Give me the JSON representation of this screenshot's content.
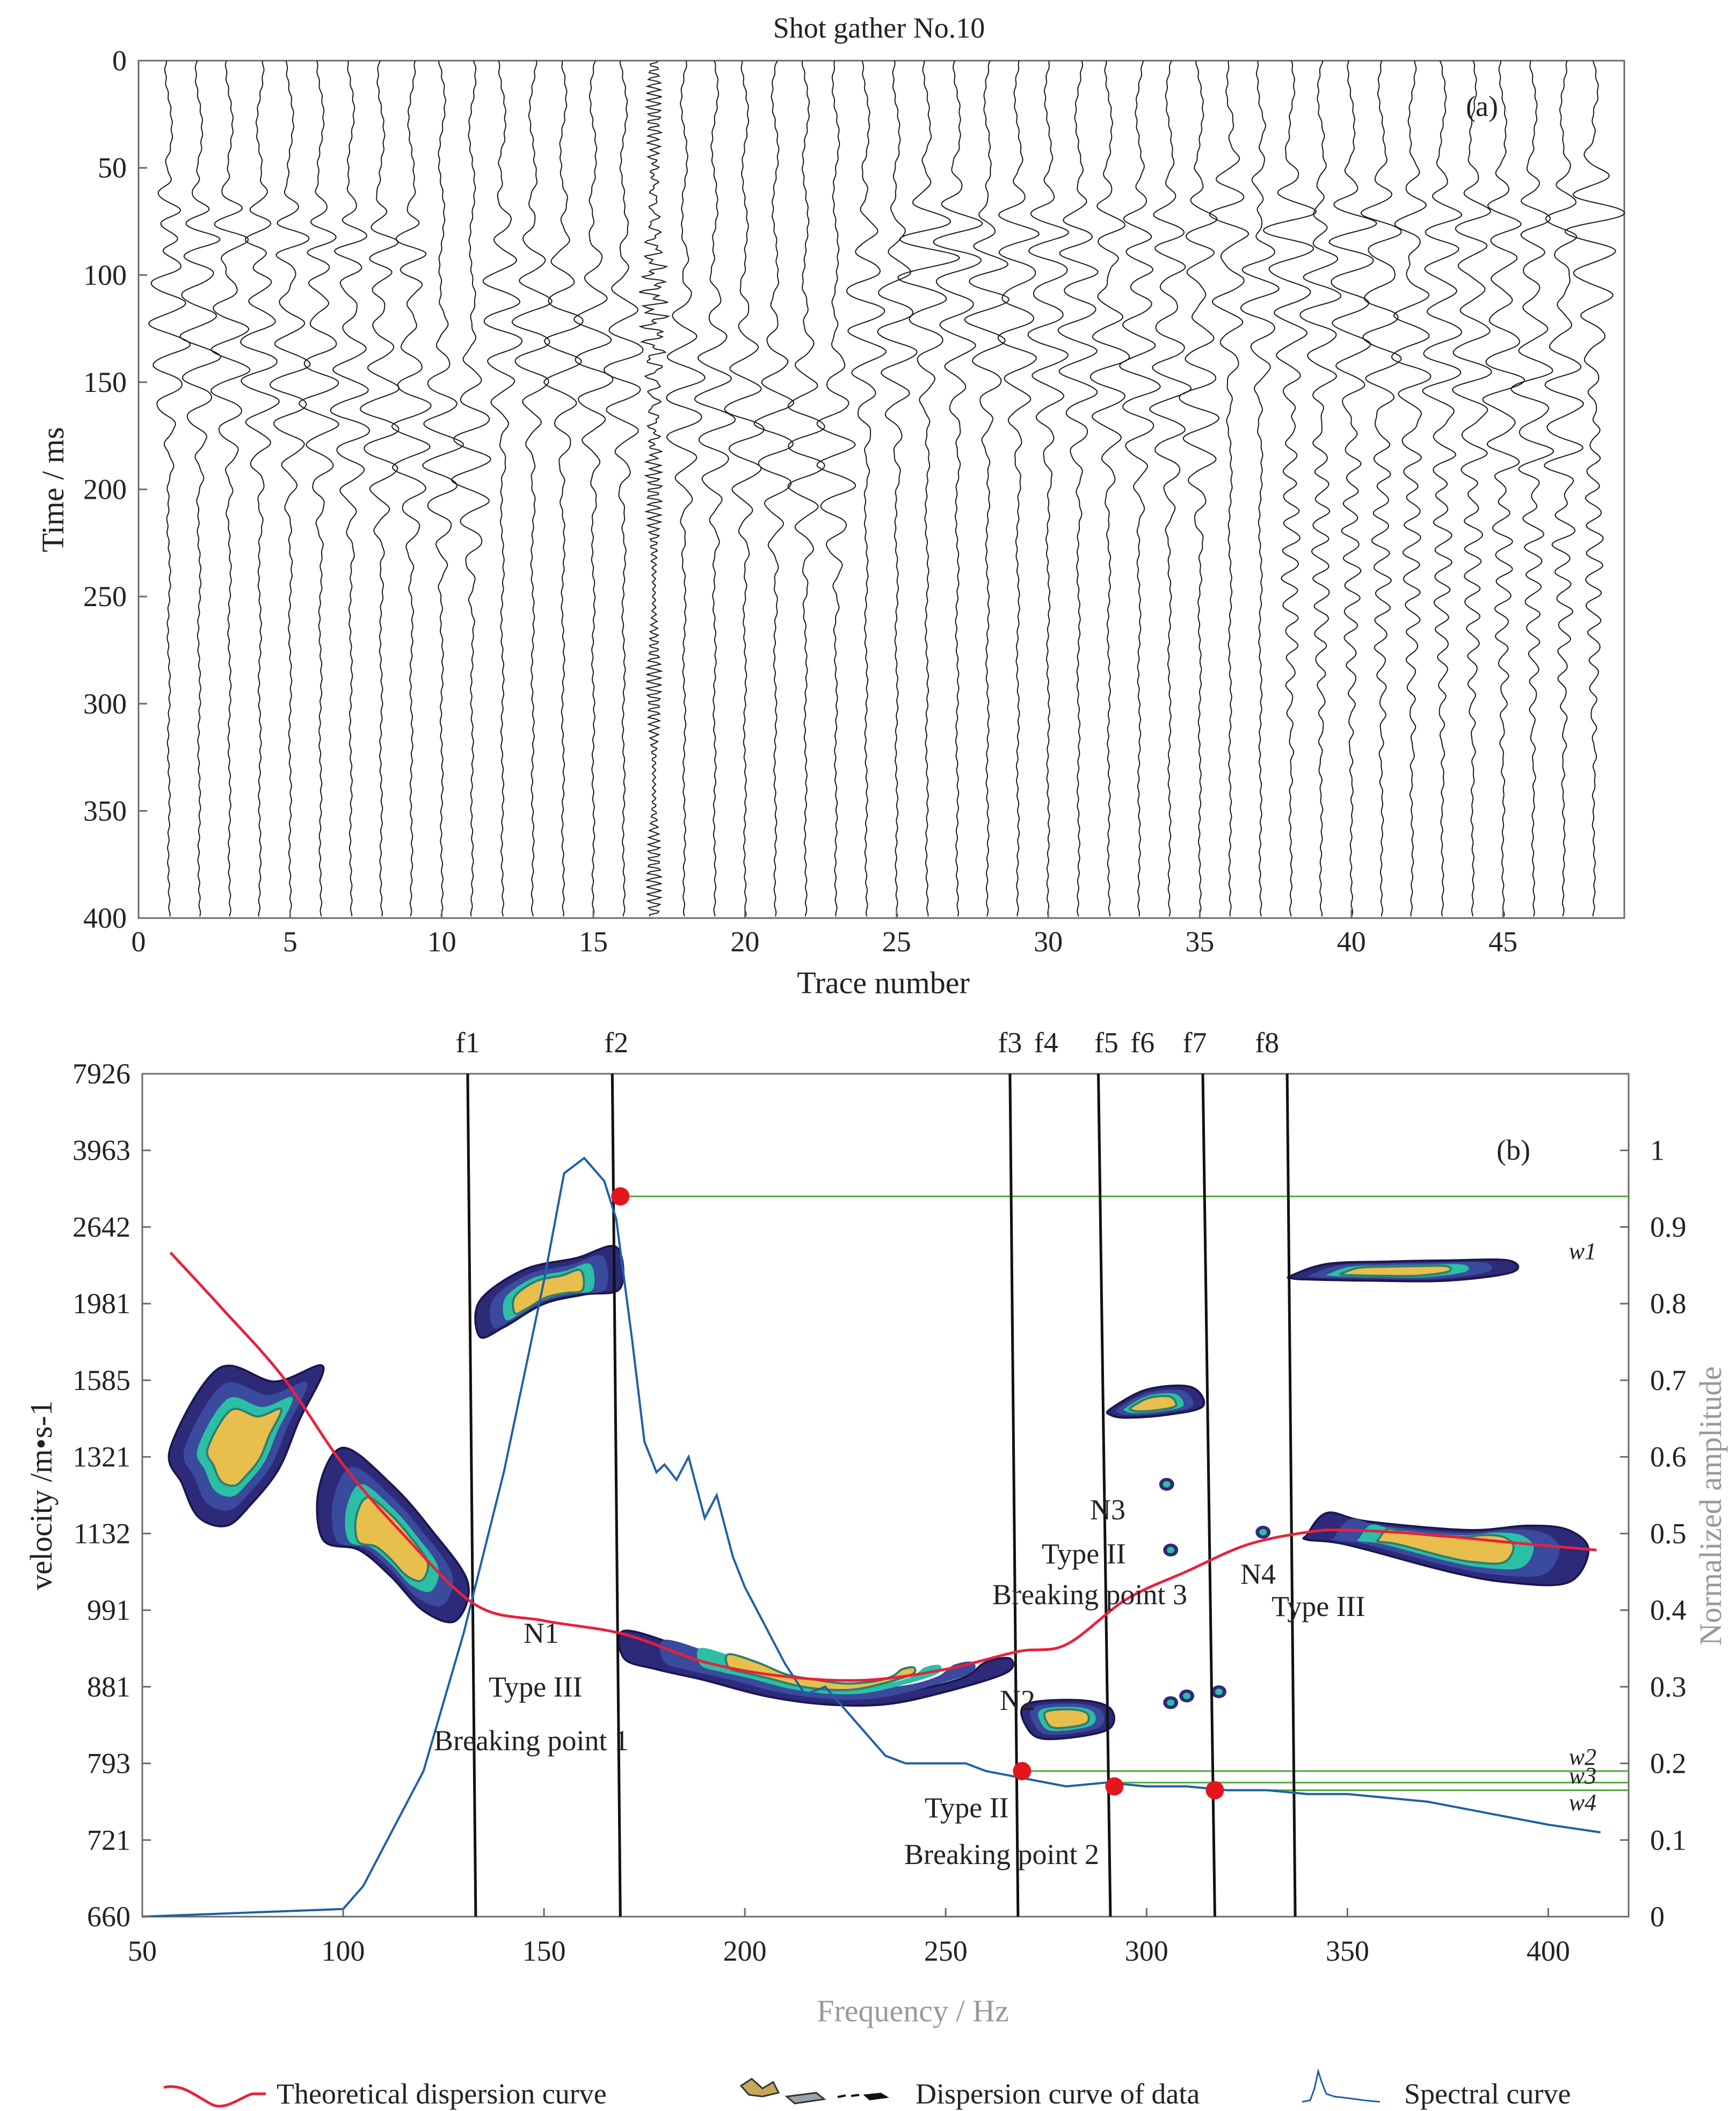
{
  "chart_data": [
    {
      "id": "a",
      "type": "seismic-wiggle",
      "title": "Shot gather No.10",
      "panel_label": "(a)",
      "xlabel": "Trace number",
      "ylabel": "Time / ms",
      "xlim": [
        0,
        49
      ],
      "ylim": [
        0,
        400
      ],
      "xticks": [
        "0",
        "5",
        "10",
        "15",
        "20",
        "25",
        "30",
        "35",
        "40",
        "45"
      ],
      "yticks": [
        "0",
        "50",
        "100",
        "150",
        "200",
        "250",
        "300",
        "350",
        "400"
      ],
      "trace_count": 48,
      "events_ms": [
        {
          "name": "early arrival, traces 1-8",
          "t": 75
        },
        {
          "name": "main surface-wave packet",
          "t": 130
        },
        {
          "name": "late arrival, traces 26-48",
          "t": 85
        }
      ],
      "noisy_trace": 17
    },
    {
      "id": "b",
      "type": "line",
      "panel_label": "(b)",
      "xlabel": "Frequency / Hz",
      "ylabel": "velocity /m•s-1",
      "y2label": "Normalized amplitude",
      "xlim": [
        50,
        420
      ],
      "xticks": [
        "50",
        "100",
        "150",
        "200",
        "250",
        "300",
        "350",
        "400"
      ],
      "yticks": [
        "660",
        "721",
        "793",
        "881",
        "991",
        "1132",
        "1321",
        "1585",
        "1981",
        "2642",
        "3963",
        "7926"
      ],
      "y2lim": [
        0,
        1.1
      ],
      "y2ticks": [
        "0",
        "0.1",
        "0.2",
        "0.3",
        "0.4",
        "0.5",
        "0.6",
        "0.7",
        "0.8",
        "0.9",
        "1"
      ],
      "frequency_lines": [
        {
          "label": "f1",
          "f": 133
        },
        {
          "label": "f2",
          "f": 169
        },
        {
          "label": "f3",
          "f": 268
        },
        {
          "label": "f4",
          "f": 268
        },
        {
          "label": "f5",
          "f": 291
        },
        {
          "label": "f6",
          "f": 291
        },
        {
          "label": "f7",
          "f": 317
        },
        {
          "label": "f8",
          "f": 337
        }
      ],
      "f_label_x": [
        131,
        168,
        266,
        275,
        290,
        299,
        312,
        330
      ],
      "series": [
        {
          "name": "Theoretical dispersion curve",
          "color": "#e8213a",
          "x": [
            57,
            70,
            85,
            100,
            115,
            133,
            150,
            170,
            190,
            210,
            230,
            250,
            268,
            280,
            295,
            310,
            325,
            340,
            350,
            370,
            390,
            412
          ],
          "velocity": [
            2400,
            1950,
            1600,
            1300,
            1130,
            1000,
            975,
            955,
            915,
            895,
            890,
            905,
            930,
            940,
            1010,
            1060,
            1110,
            1135,
            1140,
            1130,
            1115,
            1100
          ]
        },
        {
          "name": "Spectral curve",
          "color": "#1f5fa8",
          "x": [
            50,
            100,
            105,
            110,
            120,
            130,
            140,
            150,
            155,
            160,
            165,
            168,
            172,
            175,
            178,
            180,
            183,
            186,
            190,
            193,
            197,
            200,
            205,
            210,
            215,
            220,
            225,
            230,
            235,
            240,
            245,
            250,
            255,
            260,
            270,
            280,
            290,
            300,
            310,
            320,
            330,
            340,
            350,
            360,
            370,
            380,
            390,
            400,
            413
          ],
          "amplitude": [
            0,
            0.01,
            0.04,
            0.09,
            0.19,
            0.37,
            0.58,
            0.83,
            0.97,
            0.99,
            0.96,
            0.91,
            0.75,
            0.62,
            0.58,
            0.59,
            0.57,
            0.6,
            0.52,
            0.55,
            0.47,
            0.43,
            0.38,
            0.33,
            0.29,
            0.3,
            0.27,
            0.24,
            0.21,
            0.2,
            0.2,
            0.2,
            0.2,
            0.19,
            0.18,
            0.17,
            0.175,
            0.17,
            0.17,
            0.165,
            0.165,
            0.16,
            0.16,
            0.155,
            0.15,
            0.14,
            0.13,
            0.12,
            0.11
          ]
        }
      ],
      "dispersion_blobs": [
        {
          "name": "blob-low-1",
          "f": [
            57,
            69,
            83,
            95,
            89,
            84,
            77,
            71,
            64,
            60
          ],
          "v": [
            1350,
            1640,
            1580,
            1650,
            1440,
            1290,
            1200,
            1150,
            1170,
            1250
          ]
        },
        {
          "name": "blob-low-2",
          "f": [
            94,
            100,
            112,
            122,
            131,
            128,
            120,
            112,
            104,
            95
          ],
          "v": [
            1240,
            1350,
            1250,
            1140,
            1040,
            975,
            990,
            1050,
            1100,
            1120
          ]
        },
        {
          "name": "blob-f1f2",
          "f": [
            134,
            145,
            158,
            168,
            169,
            160,
            150,
            140,
            134
          ],
          "v": [
            2000,
            2250,
            2350,
            2450,
            2100,
            2050,
            1980,
            1850,
            1800
          ]
        },
        {
          "name": "blob-N1",
          "f": [
            170,
            185,
            200,
            215,
            230,
            245,
            255,
            260,
            266,
            265,
            250,
            235,
            220,
            205,
            190,
            178,
            170
          ],
          "v": [
            960,
            935,
            900,
            885,
            875,
            880,
            895,
            915,
            920,
            900,
            875,
            860,
            860,
            870,
            890,
            905,
            920
          ]
        },
        {
          "name": "blob-N2",
          "f": [
            270,
            283,
            291,
            290,
            275,
            270
          ],
          "v": [
            860,
            865,
            855,
            830,
            820,
            835
          ]
        },
        {
          "name": "blob-1500",
          "f": [
            291,
            300,
            311,
            314,
            305,
            295,
            291
          ],
          "v": [
            1480,
            1550,
            1560,
            1490,
            1460,
            1450,
            1460
          ]
        },
        {
          "name": "blob-upper-right",
          "f": [
            336,
            345,
            360,
            375,
            390,
            391,
            375,
            355,
            340,
            336
          ],
          "v": [
            2200,
            2300,
            2320,
            2330,
            2330,
            2230,
            2160,
            2160,
            2170,
            2180
          ]
        },
        {
          "name": "blob-mid-right",
          "f": [
            340,
            345,
            355,
            380,
            395,
            405,
            410,
            405,
            390,
            375,
            350,
            340
          ],
          "v": [
            1130,
            1180,
            1160,
            1140,
            1150,
            1140,
            1100,
            1040,
            1040,
            1060,
            1110,
            1120
          ]
        }
      ],
      "breaking_points": [
        {
          "name": "bp-f2",
          "f": 169,
          "amp": 0.94
        },
        {
          "name": "bp-2",
          "f": 269,
          "amp": 0.19
        },
        {
          "name": "bp-w3",
          "f": 292,
          "amp": 0.17
        },
        {
          "name": "bp-w4",
          "f": 317,
          "amp": 0.165
        }
      ],
      "w_lines": [
        {
          "label": "w1",
          "amp": 0.94
        },
        {
          "label": "w2",
          "amp": 0.19
        },
        {
          "label": "w3",
          "amp": 0.175
        },
        {
          "label": "w4",
          "amp": 0.165
        }
      ],
      "annotations": {
        "n1": "N1",
        "n1_type": "Type III",
        "n1_bp": "Breaking point  1",
        "n2": "N2",
        "n2_type": "Type II",
        "n2_bp": "Breaking  point  2",
        "n3": "N3",
        "n3_type": "Type II",
        "n3_bp": "Breaking point  3",
        "n4": "N4",
        "n4_type": "Type III"
      },
      "legend": {
        "theoretical": "Theoretical dispersion curve",
        "data": "Dispersion curve of data",
        "spectral": "Spectral curve"
      }
    }
  ]
}
